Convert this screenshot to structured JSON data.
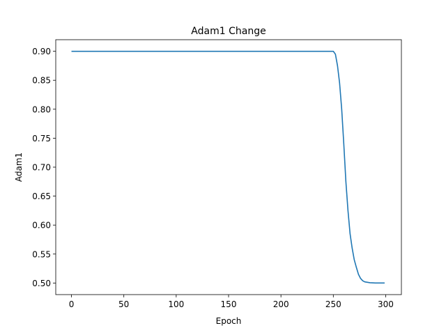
{
  "chart_data": {
    "type": "line",
    "title": "Adam1 Change",
    "xlabel": "Epoch",
    "ylabel": "Adam1",
    "xlim": [
      -15,
      315
    ],
    "ylim": [
      0.48,
      0.92
    ],
    "xticks": [
      0,
      50,
      100,
      150,
      200,
      250,
      300
    ],
    "yticks": [
      0.5,
      0.55,
      0.6,
      0.65,
      0.7,
      0.75,
      0.8,
      0.85,
      0.9
    ],
    "grid": false,
    "legend": "none",
    "series": [
      {
        "color": "#1f77b4",
        "x": [
          0,
          50,
          100,
          150,
          200,
          248,
          250,
          252,
          254,
          256,
          258,
          260,
          262,
          264,
          266,
          268,
          270,
          272,
          274,
          276,
          278,
          280,
          285,
          290,
          295,
          299
        ],
        "y": [
          0.9,
          0.9,
          0.9,
          0.9,
          0.9,
          0.9,
          0.9,
          0.895,
          0.875,
          0.845,
          0.8,
          0.74,
          0.675,
          0.625,
          0.585,
          0.56,
          0.54,
          0.527,
          0.515,
          0.508,
          0.504,
          0.502,
          0.5005,
          0.5,
          0.5,
          0.5
        ]
      }
    ]
  }
}
